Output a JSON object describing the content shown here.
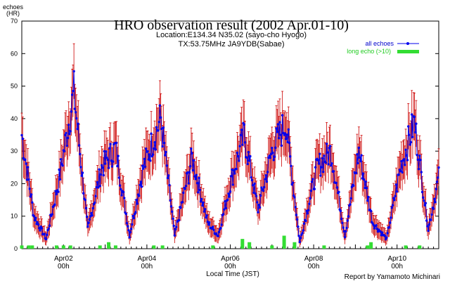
{
  "chart_data": {
    "type": "line",
    "title": "HRO observation result (2002 Apr.01-10)",
    "subtitle_lines": [
      "Location:E134.34 N35.02 (sayo-cho Hyogo)",
      "TX:53.75MHz JA9YDB(Sabae)"
    ],
    "ylabel_lines": [
      "echoes",
      "(HR)"
    ],
    "xlabel": "Local Time (JST)",
    "footer": "Report by Yamamoto Michinari",
    "ylim": [
      0,
      70
    ],
    "y_ticks": [
      0,
      10,
      20,
      30,
      40,
      50,
      60,
      70
    ],
    "x_range_hours": [
      0,
      240
    ],
    "x_tick_labels": [
      {
        "hour": 24,
        "line1": "Apr02",
        "line2": "00h"
      },
      {
        "hour": 72,
        "line1": "Apr04",
        "line2": "00h"
      },
      {
        "hour": 120,
        "line1": "Apr06",
        "line2": "00h"
      },
      {
        "hour": 168,
        "line1": "Apr08",
        "line2": "00h"
      },
      {
        "hour": 216,
        "line1": "Apr10",
        "line2": "00h"
      }
    ],
    "legend_position": "top-right",
    "series": [
      {
        "name": "all echoes",
        "color": "#0000ee",
        "error_color": "#cc0000",
        "style": "line-with-markers-and-error-bars",
        "peaks": [
          {
            "hour": 0,
            "value": 35
          },
          {
            "hour": 7,
            "value": 10
          },
          {
            "hour": 14,
            "value": 3
          },
          {
            "hour": 21,
            "value": 20
          },
          {
            "hour": 30,
            "value": 48
          },
          {
            "hour": 38,
            "value": 6
          },
          {
            "hour": 46,
            "value": 25
          },
          {
            "hour": 54,
            "value": 31
          },
          {
            "hour": 62,
            "value": 4
          },
          {
            "hour": 70,
            "value": 25
          },
          {
            "hour": 80,
            "value": 40
          },
          {
            "hour": 88,
            "value": 4
          },
          {
            "hour": 98,
            "value": 28
          },
          {
            "hour": 107,
            "value": 8
          },
          {
            "hour": 113,
            "value": 4
          },
          {
            "hour": 121,
            "value": 22
          },
          {
            "hour": 128,
            "value": 35
          },
          {
            "hour": 136,
            "value": 12
          },
          {
            "hour": 144,
            "value": 30
          },
          {
            "hour": 152,
            "value": 39
          },
          {
            "hour": 160,
            "value": 2
          },
          {
            "hour": 170,
            "value": 25
          },
          {
            "hour": 178,
            "value": 30
          },
          {
            "hour": 186,
            "value": 4
          },
          {
            "hour": 194,
            "value": 30
          },
          {
            "hour": 202,
            "value": 8
          },
          {
            "hour": 210,
            "value": 3
          },
          {
            "hour": 218,
            "value": 25
          },
          {
            "hour": 226,
            "value": 39
          },
          {
            "hour": 234,
            "value": 6
          },
          {
            "hour": 240,
            "value": 22
          }
        ]
      },
      {
        "name": "long echo (>10)",
        "color": "#33dd33",
        "style": "bars",
        "values": [
          {
            "hour": 0,
            "value": 1
          },
          {
            "hour": 4,
            "value": 1
          },
          {
            "hour": 6,
            "value": 1
          },
          {
            "hour": 20,
            "value": 1
          },
          {
            "hour": 24,
            "value": 1
          },
          {
            "hour": 28,
            "value": 1
          },
          {
            "hour": 45,
            "value": 1
          },
          {
            "hour": 50,
            "value": 2
          },
          {
            "hour": 54,
            "value": 1
          },
          {
            "hour": 76,
            "value": 1
          },
          {
            "hour": 81,
            "value": 1
          },
          {
            "hour": 110,
            "value": 1
          },
          {
            "hour": 127,
            "value": 3
          },
          {
            "hour": 131,
            "value": 2
          },
          {
            "hour": 144,
            "value": 1
          },
          {
            "hour": 151,
            "value": 4
          },
          {
            "hour": 157,
            "value": 2
          },
          {
            "hour": 174,
            "value": 1
          },
          {
            "hour": 199,
            "value": 1
          },
          {
            "hour": 201,
            "value": 2
          },
          {
            "hour": 221,
            "value": 1
          },
          {
            "hour": 229,
            "value": 1
          }
        ]
      }
    ]
  }
}
